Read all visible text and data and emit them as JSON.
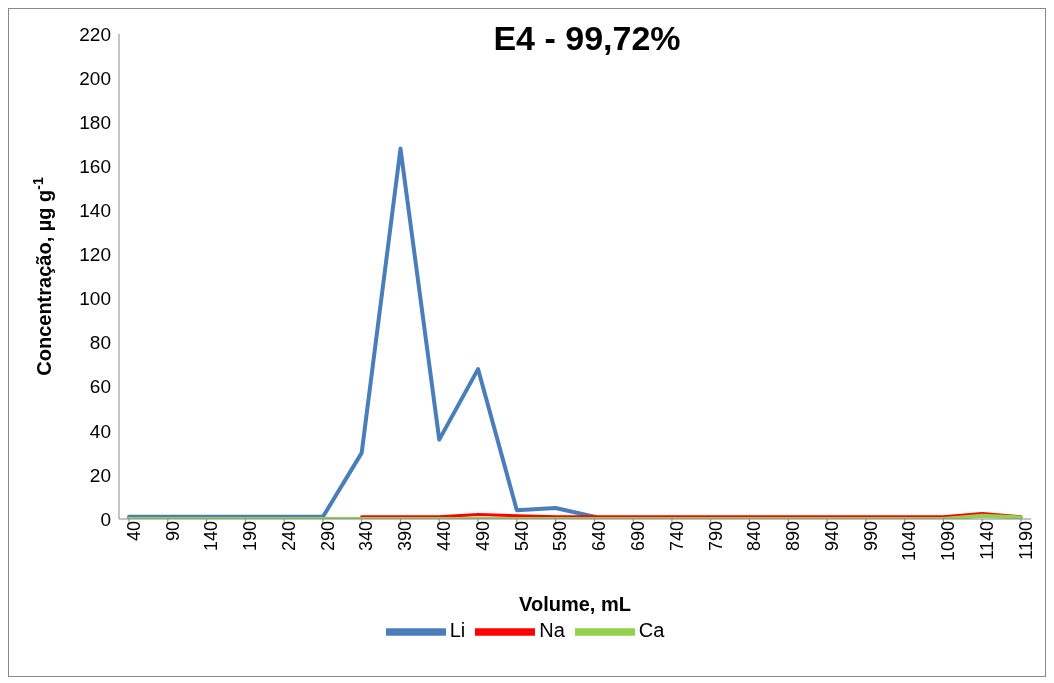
{
  "chart_data": {
    "type": "line",
    "title": "E4 - 99,72%",
    "xlabel": "Volume, mL",
    "ylabel": "Concentração, µg g$^{-1}$",
    "categories": [
      "40",
      "90",
      "140",
      "190",
      "240",
      "290",
      "340",
      "390",
      "440",
      "490",
      "540",
      "590",
      "640",
      "690",
      "740",
      "790",
      "840",
      "890",
      "940",
      "990",
      "1040",
      "1090",
      "1140",
      "1190"
    ],
    "series": [
      {
        "name": "Li",
        "color": "#4a7ebb",
        "values": [
          1,
          1,
          1,
          1,
          1,
          1,
          30,
          168,
          36,
          68,
          4,
          5,
          1,
          null,
          null,
          null,
          null,
          null,
          null,
          null,
          null,
          null,
          null,
          null
        ]
      },
      {
        "name": "Na",
        "color": "#ff0000",
        "values": [
          null,
          null,
          null,
          null,
          null,
          null,
          1,
          1,
          1,
          2,
          1.5,
          1,
          1,
          1,
          1,
          1,
          1,
          1,
          1,
          1,
          1,
          1,
          2.5,
          1
        ]
      },
      {
        "name": "Ca",
        "color": "#92d050",
        "values": [
          0,
          0,
          0,
          0,
          0,
          0,
          0,
          0,
          0,
          0,
          0,
          0,
          0,
          0,
          0,
          0,
          0,
          0,
          0,
          0,
          0,
          0,
          1.5,
          0.7
        ]
      }
    ],
    "ylim": [
      0,
      220
    ],
    "yticks": [
      0,
      20,
      40,
      60,
      80,
      100,
      120,
      140,
      160,
      180,
      200,
      220
    ],
    "grid": false,
    "legend": "bottom",
    "marker": "none",
    "line_style": "solid"
  }
}
